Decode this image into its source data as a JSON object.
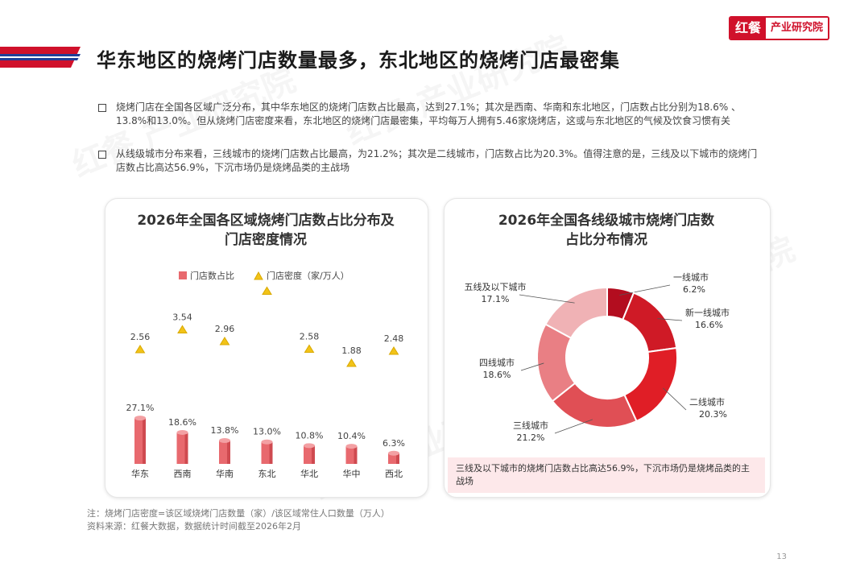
{
  "header": {
    "title": "华东地区的烧烤门店数量最多，东北地区的烧烤门店最密集",
    "logo_mark": "红餐",
    "logo_text": "产业研究院",
    "accent": "#d0112b"
  },
  "bullets": [
    "烧烤门店在全国各区域广泛分布，其中华东地区的烧烤门店数占比最高，达到27.1%；其次是西南、华南和东北地区，门店数占比分别为18.6% 、13.8%和13.0%。但从烧烤门店密度来看，东北地区的烧烤门店最密集，平均每万人拥有5.46家烧烤店，这或与东北地区的气候及饮食习惯有关",
    "从线级城市分布来看，三线城市的烧烤门店数占比最高，为21.2%；其次是二线城市，门店数占比为20.3%。值得注意的是，三线及以下城市的烧烤门店数占比高达56.9%，下沉市场仍是烧烤品类的主战场"
  ],
  "left_panel": {
    "title_line1": "2026年全国各区域烧烤门店数占比分布及",
    "title_line2": "门店密度情况",
    "legend_bar": "门店数占比",
    "legend_marker": "门店密度（家/万人）"
  },
  "right_panel": {
    "title_line1": "2026年全国各线级城市烧烤门店数",
    "title_line2": "占比分布情况",
    "callout": "三线及以下城市的烧烤门店数占比高达56.9%，下沉市场仍是烧烤品类的主战场"
  },
  "chart_data": [
    {
      "type": "bar",
      "categories": [
        "华东",
        "西南",
        "华南",
        "东北",
        "华北",
        "华中",
        "西北"
      ],
      "series": [
        {
          "name": "门店数占比",
          "values": [
            27.1,
            18.6,
            13.8,
            13.0,
            10.8,
            10.4,
            6.3
          ],
          "unit": "%",
          "color": "#e8696e"
        },
        {
          "name": "门店密度（家/万人）",
          "values": [
            2.56,
            3.54,
            2.96,
            5.46,
            2.58,
            1.88,
            2.48
          ],
          "marker": "triangle",
          "color": "#f2c318"
        }
      ],
      "title": "2026年全国各区域烧烤门店数占比分布及门店密度情况"
    },
    {
      "type": "pie",
      "donut": true,
      "labels": [
        "一线城市",
        "新一线城市",
        "二线城市",
        "三线城市",
        "四线城市",
        "五线及以下城市"
      ],
      "values": [
        6.2,
        16.6,
        20.3,
        21.2,
        18.6,
        17.1
      ],
      "unit": "%",
      "colors": [
        "#b30d1f",
        "#cf1a26",
        "#e01e26",
        "#e04f55",
        "#e97f84",
        "#f0b2b5"
      ],
      "title": "2026年全国各线级城市烧烤门店数占比分布情况"
    }
  ],
  "footnotes": {
    "note": "注：烧烤门店密度=该区域烧烤门店数量（家）/该区域常住人口数量（万人）",
    "source": "资料来源：红餐大数据，数据统计时间截至2026年2月"
  },
  "page_number": "13",
  "watermark_text": "红餐 产业研究院"
}
